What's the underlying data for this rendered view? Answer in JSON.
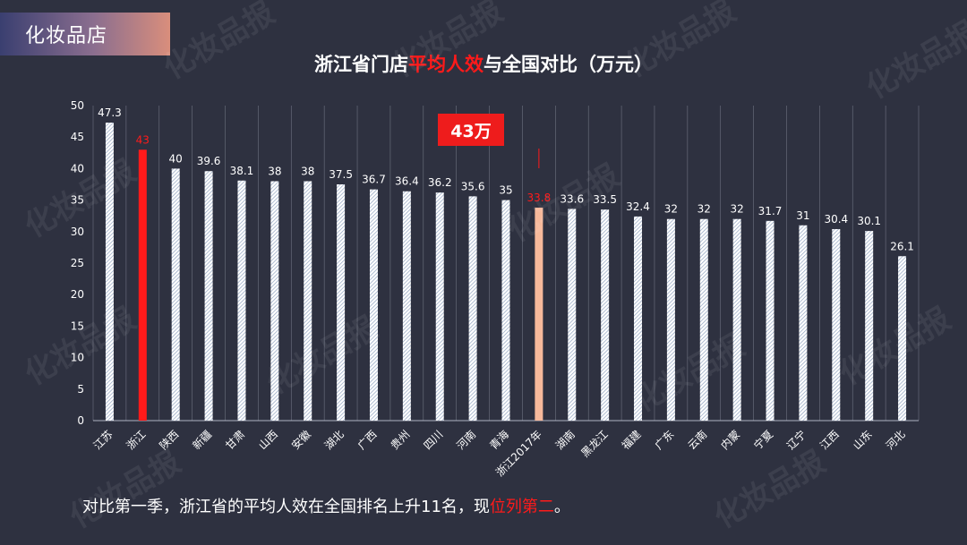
{
  "brand": {
    "label": "化妆品店"
  },
  "title": {
    "before": "浙江省门店",
    "highlight": "平均人效",
    "after": "与全国对比（万元）"
  },
  "callout": {
    "label": "43万"
  },
  "footer": {
    "before": "对比第一季，浙江省的平均人效在全国排名上升11名，现",
    "highlight": "位列第二",
    "after": "。"
  },
  "watermark": {
    "label": "化妆品报"
  },
  "colors": {
    "background": "#2e3140",
    "default_bar": "#dde6f0",
    "highlight_bar": "#ff1a1a",
    "compare_bar": "#f7b99b",
    "highlight_label": "#ff1a1a",
    "grid": "#aeb3c2"
  },
  "chart_data": {
    "type": "bar",
    "title": "浙江省门店平均人效与全国对比（万元）",
    "categories": [
      "江苏",
      "浙江",
      "陕西",
      "新疆",
      "甘肃",
      "山西",
      "安徽",
      "湖北",
      "广西",
      "贵州",
      "四川",
      "河南",
      "青海",
      "浙江2017年",
      "湖南",
      "黑龙江",
      "福建",
      "广东",
      "云南",
      "内蒙",
      "宁夏",
      "辽宁",
      "江西",
      "山东",
      "河北"
    ],
    "values": [
      47.3,
      43,
      40,
      39.6,
      38.1,
      38,
      38,
      37.5,
      36.7,
      36.4,
      36.2,
      35.6,
      35,
      33.8,
      33.6,
      33.5,
      32.4,
      32,
      32,
      32,
      31.7,
      31,
      30.4,
      30.1,
      26.1
    ],
    "value_labels": [
      "47.3",
      "43",
      "40",
      "39.6",
      "38.1",
      "38",
      "38",
      "37.5",
      "36.7",
      "36.4",
      "36.2",
      "35.6",
      "35",
      "33.8",
      "33.6",
      "33.5",
      "32.4",
      "32",
      "32",
      "32",
      "31.7",
      "31",
      "30.4",
      "30.1",
      "26.1"
    ],
    "highlight_index": 1,
    "compare_index": 13,
    "ylim": [
      0,
      50
    ],
    "yticks": [
      "0",
      "5",
      "10",
      "15",
      "20",
      "25",
      "30",
      "35",
      "40",
      "45",
      "50"
    ],
    "grid": true,
    "xlabel": "",
    "ylabel": ""
  }
}
